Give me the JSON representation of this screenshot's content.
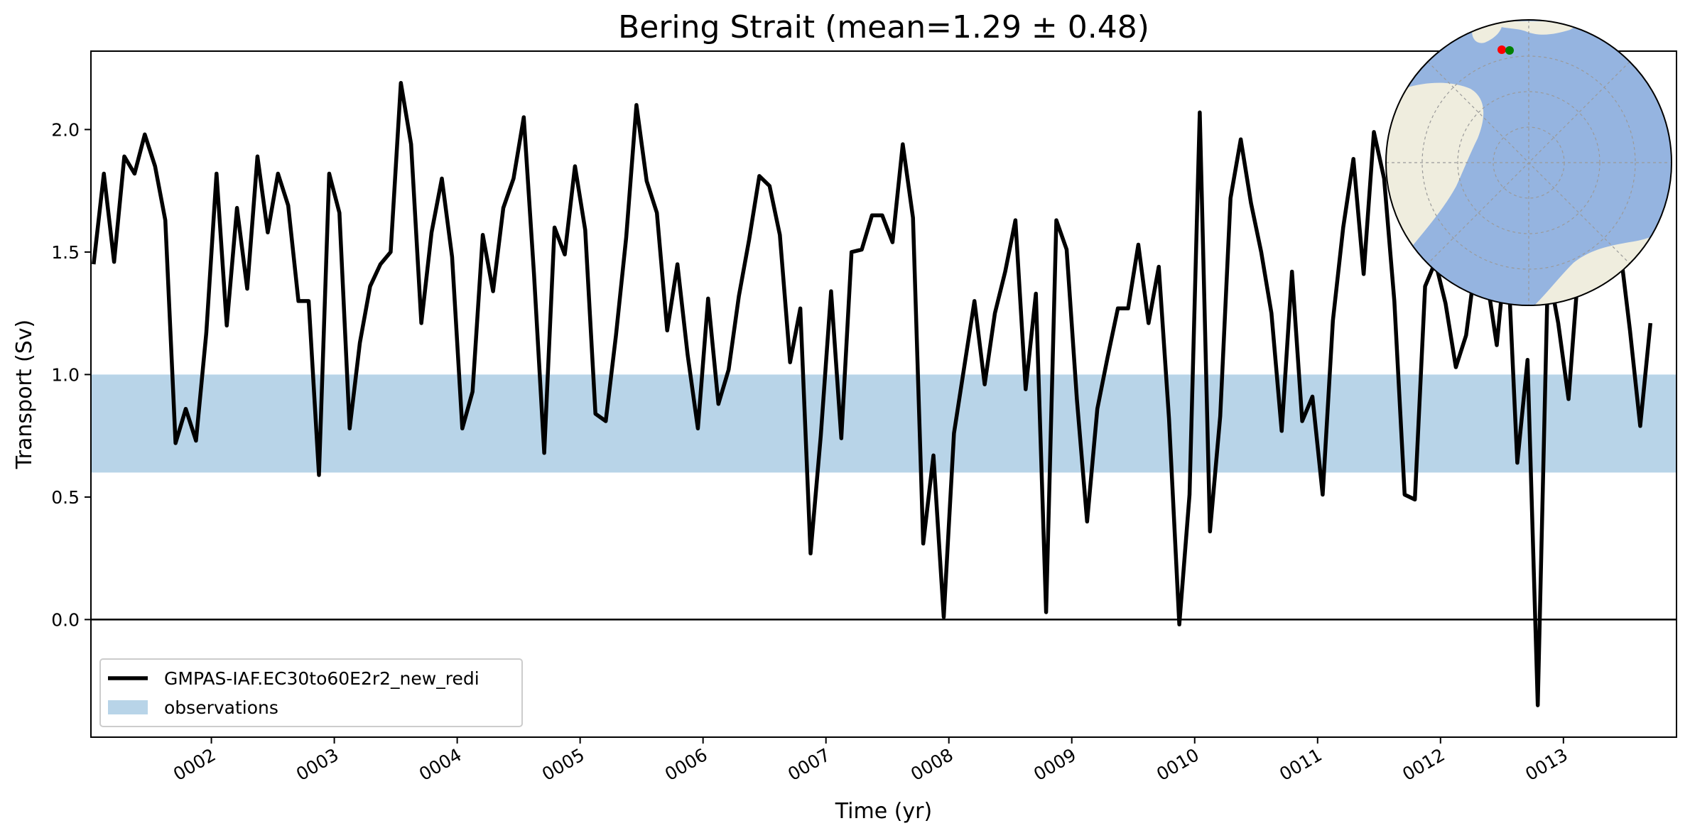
{
  "chart_data": {
    "type": "line",
    "title": "Bering Strait (mean=1.29 ± 0.48)",
    "xlabel": "Time (yr)",
    "ylabel": "Transport (Sv)",
    "xlim": [
      1.02,
      13.92
    ],
    "ylim": [
      -0.48,
      2.32
    ],
    "xticks": [
      2,
      3,
      4,
      5,
      6,
      7,
      8,
      9,
      10,
      11,
      12,
      13
    ],
    "xtick_labels": [
      "0002",
      "0003",
      "0004",
      "0005",
      "0006",
      "0007",
      "0008",
      "0009",
      "0010",
      "0011",
      "0012",
      "0013"
    ],
    "yticks": [
      0.0,
      0.5,
      1.0,
      1.5,
      2.0
    ],
    "ytick_labels": [
      "0.0",
      "0.5",
      "1.0",
      "1.5",
      "2.0"
    ],
    "grid": false,
    "legend_location": "lower-left",
    "zero_line": 0.0,
    "observations": {
      "name": "observations",
      "low": 0.6,
      "high": 1.0,
      "color": "#b8d4e8"
    },
    "series": [
      {
        "name": "GMPAS-IAF.EC30to60E2r2_new_redi",
        "color": "#000000",
        "x_start": 1.0417,
        "x_step": 0.08333,
        "y": [
          1.45,
          1.82,
          1.46,
          1.89,
          1.82,
          1.98,
          1.85,
          1.63,
          0.72,
          0.86,
          0.73,
          1.17,
          1.82,
          1.2,
          1.68,
          1.35,
          1.89,
          1.58,
          1.82,
          1.69,
          1.3,
          1.3,
          0.59,
          1.82,
          1.66,
          0.78,
          1.13,
          1.36,
          1.45,
          1.5,
          2.19,
          1.94,
          1.21,
          1.58,
          1.8,
          1.48,
          0.78,
          0.93,
          1.57,
          1.34,
          1.68,
          1.8,
          2.05,
          1.41,
          0.68,
          1.6,
          1.49,
          1.85,
          1.59,
          0.84,
          0.81,
          1.16,
          1.56,
          2.1,
          1.79,
          1.66,
          1.18,
          1.45,
          1.08,
          0.78,
          1.31,
          0.88,
          1.02,
          1.32,
          1.55,
          1.81,
          1.77,
          1.57,
          1.05,
          1.27,
          0.27,
          0.75,
          1.34,
          0.74,
          1.5,
          1.51,
          1.65,
          1.65,
          1.54,
          1.94,
          1.64,
          0.31,
          0.67,
          0.01,
          0.76,
          1.03,
          1.3,
          0.96,
          1.25,
          1.42,
          1.63,
          0.94,
          1.33,
          0.03,
          1.63,
          1.51,
          0.9,
          0.4,
          0.86,
          1.07,
          1.27,
          1.27,
          1.53,
          1.21,
          1.44,
          0.82,
          -0.02,
          0.51,
          2.07,
          0.36,
          0.83,
          1.72,
          1.96,
          1.7,
          1.5,
          1.25,
          0.77,
          1.42,
          0.81,
          0.91,
          0.51,
          1.22,
          1.6,
          1.88,
          1.41,
          1.99,
          1.8,
          1.3,
          0.51,
          0.49,
          1.36,
          1.46,
          1.29,
          1.03,
          1.16,
          1.48,
          1.4,
          1.12,
          1.55,
          0.64,
          1.06,
          -0.35,
          1.44,
          1.21,
          0.9,
          1.45,
          1.8,
          1.6,
          1.68,
          1.53,
          1.18,
          0.79,
          1.21
        ]
      }
    ]
  },
  "inset_map": {
    "ocean_color": "#95b4e0",
    "land_color": "#efedde",
    "markers": [
      {
        "name": "section-start",
        "color": "#ff0000"
      },
      {
        "name": "section-end",
        "color": "#008000"
      }
    ]
  }
}
